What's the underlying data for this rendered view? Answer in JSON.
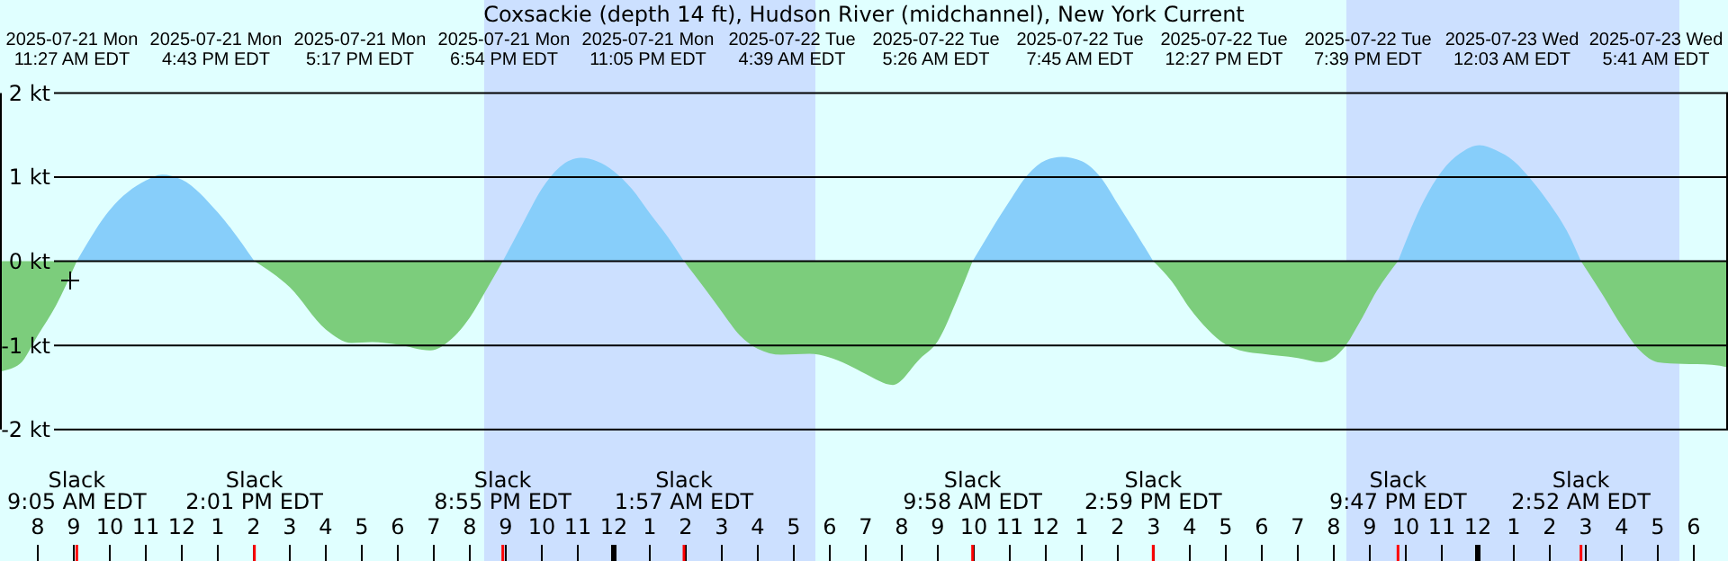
{
  "chart_data": {
    "type": "area",
    "title": "Coxsackie (depth 14 ft), Hudson River (midchannel), New York Current",
    "x": [
      "2025-07-21T06:57",
      "2025-07-21T07:30",
      "2025-07-21T08:00",
      "2025-07-21T08:30",
      "2025-07-21T09:05",
      "2025-07-21T10:00",
      "2025-07-21T11:00",
      "2025-07-21T11:27",
      "2025-07-21T12:00",
      "2025-07-21T13:00",
      "2025-07-21T14:01",
      "2025-07-21T15:00",
      "2025-07-21T16:00",
      "2025-07-21T16:43",
      "2025-07-21T17:17",
      "2025-07-21T18:00",
      "2025-07-21T18:54",
      "2025-07-21T19:30",
      "2025-07-21T20:00",
      "2025-07-21T20:30",
      "2025-07-21T20:55",
      "2025-07-21T21:30",
      "2025-07-21T22:00",
      "2025-07-21T22:30",
      "2025-07-21T23:05",
      "2025-07-22T00:00",
      "2025-07-22T00:30",
      "2025-07-22T01:00",
      "2025-07-22T01:30",
      "2025-07-22T01:57",
      "2025-07-22T02:30",
      "2025-07-22T03:00",
      "2025-07-22T03:30",
      "2025-07-22T04:00",
      "2025-07-22T04:39",
      "2025-07-22T05:26",
      "2025-07-22T06:30",
      "2025-07-22T07:00",
      "2025-07-22T07:45",
      "2025-07-22T08:30",
      "2025-07-22T09:00",
      "2025-07-22T09:30",
      "2025-07-22T09:58",
      "2025-07-22T11:00",
      "2025-07-22T11:30",
      "2025-07-22T12:00",
      "2025-07-22T12:27",
      "2025-07-22T13:00",
      "2025-07-22T13:30",
      "2025-07-22T14:00",
      "2025-07-22T14:30",
      "2025-07-22T14:59",
      "2025-07-22T15:30",
      "2025-07-22T16:00",
      "2025-07-22T16:30",
      "2025-07-22T17:00",
      "2025-07-22T17:30",
      "2025-07-22T18:00",
      "2025-07-22T19:00",
      "2025-07-22T19:39",
      "2025-07-22T20:18",
      "2025-07-22T20:42",
      "2025-07-22T21:12",
      "2025-07-22T21:47",
      "2025-07-22T22:30",
      "2025-07-22T23:00",
      "2025-07-22T23:30",
      "2025-07-23T00:03",
      "2025-07-23T00:30",
      "2025-07-23T01:00",
      "2025-07-23T01:30",
      "2025-07-23T02:00",
      "2025-07-23T02:30",
      "2025-07-23T02:52",
      "2025-07-23T03:30",
      "2025-07-23T04:00",
      "2025-07-23T04:30",
      "2025-07-23T05:00",
      "2025-07-23T05:41",
      "2025-07-23T06:30",
      "2025-07-23T06:57"
    ],
    "series": [
      {
        "color": "#87cefa",
        "values": [
          null,
          null,
          null,
          null,
          0,
          0.61,
          0.96,
          1.03,
          0.97,
          0.58,
          0,
          null,
          null,
          null,
          null,
          null,
          null,
          null,
          null,
          null,
          0,
          0.47,
          0.86,
          1.12,
          1.23,
          1.07,
          0.86,
          0.57,
          0.29,
          0,
          null,
          null,
          null,
          null,
          null,
          null,
          null,
          null,
          null,
          null,
          null,
          null,
          0,
          0.72,
          1.03,
          1.2,
          1.24,
          1.19,
          1.01,
          0.68,
          0.34,
          0,
          null,
          null,
          null,
          null,
          null,
          null,
          null,
          null,
          null,
          null,
          null,
          0,
          0.72,
          1.07,
          1.28,
          1.38,
          1.32,
          1.19,
          0.96,
          0.68,
          0.34,
          0,
          null,
          null,
          null,
          null,
          null,
          null,
          null
        ]
      },
      {
        "color": "#7ccd7c",
        "values": [
          -1.31,
          -1.22,
          -0.88,
          -0.53,
          0,
          null,
          null,
          null,
          null,
          null,
          0,
          -0.31,
          -0.81,
          -0.97,
          -0.96,
          -0.99,
          -1.06,
          -0.92,
          -0.67,
          -0.31,
          0,
          null,
          null,
          null,
          null,
          null,
          null,
          null,
          null,
          0,
          -0.31,
          -0.6,
          -0.88,
          -1.04,
          -1.11,
          -1.1,
          -1.23,
          -1.34,
          -1.47,
          -1.16,
          -0.95,
          -0.49,
          0,
          null,
          null,
          null,
          null,
          null,
          null,
          null,
          null,
          0,
          -0.24,
          -0.56,
          -0.81,
          -0.99,
          -1.07,
          -1.1,
          -1.15,
          -1.2,
          -1.02,
          -0.74,
          -0.35,
          0,
          null,
          null,
          null,
          null,
          null,
          null,
          null,
          null,
          null,
          0,
          -0.42,
          -0.77,
          -1.06,
          -1.2,
          -1.22,
          -1.23,
          -1.26
        ]
      }
    ],
    "xlim": [
      "2025-07-21T06:57",
      "2025-07-23T06:57"
    ],
    "xticks": [
      {
        "value": "2025-07-21T08:00",
        "label": "8"
      },
      {
        "value": "2025-07-21T09:00",
        "label": "9"
      },
      {
        "value": "2025-07-21T10:00",
        "label": "10"
      },
      {
        "value": "2025-07-21T11:00",
        "label": "11"
      },
      {
        "value": "2025-07-21T12:00",
        "label": "12"
      },
      {
        "value": "2025-07-21T13:00",
        "label": "1"
      },
      {
        "value": "2025-07-21T14:00",
        "label": "2"
      },
      {
        "value": "2025-07-21T15:00",
        "label": "3"
      },
      {
        "value": "2025-07-21T16:00",
        "label": "4"
      },
      {
        "value": "2025-07-21T17:00",
        "label": "5"
      },
      {
        "value": "2025-07-21T18:00",
        "label": "6"
      },
      {
        "value": "2025-07-21T19:00",
        "label": "7"
      },
      {
        "value": "2025-07-21T20:00",
        "label": "8"
      },
      {
        "value": "2025-07-21T21:00",
        "label": "9"
      },
      {
        "value": "2025-07-21T22:00",
        "label": "10"
      },
      {
        "value": "2025-07-21T23:00",
        "label": "11"
      },
      {
        "value": "2025-07-22T00:00",
        "label": "12"
      },
      {
        "value": "2025-07-22T01:00",
        "label": "1"
      },
      {
        "value": "2025-07-22T02:00",
        "label": "2"
      },
      {
        "value": "2025-07-22T03:00",
        "label": "3"
      },
      {
        "value": "2025-07-22T04:00",
        "label": "4"
      },
      {
        "value": "2025-07-22T05:00",
        "label": "5"
      },
      {
        "value": "2025-07-22T06:00",
        "label": "6"
      },
      {
        "value": "2025-07-22T07:00",
        "label": "7"
      },
      {
        "value": "2025-07-22T08:00",
        "label": "8"
      },
      {
        "value": "2025-07-22T09:00",
        "label": "9"
      },
      {
        "value": "2025-07-22T10:00",
        "label": "10"
      },
      {
        "value": "2025-07-22T11:00",
        "label": "11"
      },
      {
        "value": "2025-07-22T12:00",
        "label": "12"
      },
      {
        "value": "2025-07-22T13:00",
        "label": "1"
      },
      {
        "value": "2025-07-22T14:00",
        "label": "2"
      },
      {
        "value": "2025-07-22T15:00",
        "label": "3"
      },
      {
        "value": "2025-07-22T16:00",
        "label": "4"
      },
      {
        "value": "2025-07-22T17:00",
        "label": "5"
      },
      {
        "value": "2025-07-22T18:00",
        "label": "6"
      },
      {
        "value": "2025-07-22T19:00",
        "label": "7"
      },
      {
        "value": "2025-07-22T20:00",
        "label": "8"
      },
      {
        "value": "2025-07-22T21:00",
        "label": "9"
      },
      {
        "value": "2025-07-22T22:00",
        "label": "10"
      },
      {
        "value": "2025-07-22T23:00",
        "label": "11"
      },
      {
        "value": "2025-07-23T00:00",
        "label": "12"
      },
      {
        "value": "2025-07-23T01:00",
        "label": "1"
      },
      {
        "value": "2025-07-23T02:00",
        "label": "2"
      },
      {
        "value": "2025-07-23T03:00",
        "label": "3"
      },
      {
        "value": "2025-07-23T04:00",
        "label": "4"
      },
      {
        "value": "2025-07-23T05:00",
        "label": "5"
      },
      {
        "value": "2025-07-23T06:00",
        "label": "6"
      }
    ],
    "ylim": [
      -2,
      2
    ],
    "yticks": [
      {
        "value": -2,
        "label": "-2 kt"
      },
      {
        "value": -1,
        "label": "-1 kt"
      },
      {
        "value": 0,
        "label": "0 kt"
      },
      {
        "value": 1,
        "label": "1 kt"
      },
      {
        "value": 2,
        "label": "2 kt"
      }
    ],
    "grid": "y",
    "bands": [
      {
        "axis": "x",
        "from": "2025-07-21T20:24",
        "to": "2025-07-22T05:36",
        "color": "#cce0ff"
      },
      {
        "axis": "x",
        "from": "2025-07-22T20:21",
        "to": "2025-07-23T05:36",
        "color": "#cce0ff"
      }
    ],
    "annotations": [
      "2025-07-21 Mon\n11:27 AM EDT",
      "2025-07-21 Mon\n4:43 PM EDT",
      "2025-07-21 Mon\n5:17 PM EDT",
      "2025-07-21 Mon\n6:54 PM EDT",
      "2025-07-21 Mon\n11:05 PM EDT",
      "2025-07-22 Tue\n4:39 AM EDT",
      "2025-07-22 Tue\n5:26 AM EDT",
      "2025-07-22 Tue\n7:45 AM EDT",
      "2025-07-22 Tue\n12:27 PM EDT",
      "2025-07-22 Tue\n7:39 PM EDT",
      "2025-07-23 Wed\n12:03 AM EDT",
      "2025-07-23 Wed\n5:41 AM EDT"
    ],
    "ref_lines": [
      {
        "axis": "x",
        "value": "2025-07-21T09:05",
        "label": "Slack\n9:05 AM EDT",
        "color": "#ff0000"
      },
      {
        "axis": "x",
        "value": "2025-07-21T14:01",
        "label": "Slack\n2:01 PM EDT",
        "color": "#ff0000"
      },
      {
        "axis": "x",
        "value": "2025-07-21T20:55",
        "label": "Slack\n8:55 PM EDT",
        "color": "#ff0000"
      },
      {
        "axis": "x",
        "value": "2025-07-22T01:57",
        "label": "Slack\n1:57 AM EDT",
        "color": "#ff0000"
      },
      {
        "axis": "x",
        "value": "2025-07-22T09:58",
        "label": "Slack\n9:58 AM EDT",
        "color": "#ff0000"
      },
      {
        "axis": "x",
        "value": "2025-07-22T14:59",
        "label": "Slack\n2:59 PM EDT",
        "color": "#ff0000"
      },
      {
        "axis": "x",
        "value": "2025-07-22T21:47",
        "label": "Slack\n9:47 PM EDT",
        "color": "#ff0000"
      },
      {
        "axis": "x",
        "value": "2025-07-23T02:52",
        "label": "Slack\n2:52 AM EDT",
        "color": "#ff0000"
      }
    ]
  }
}
